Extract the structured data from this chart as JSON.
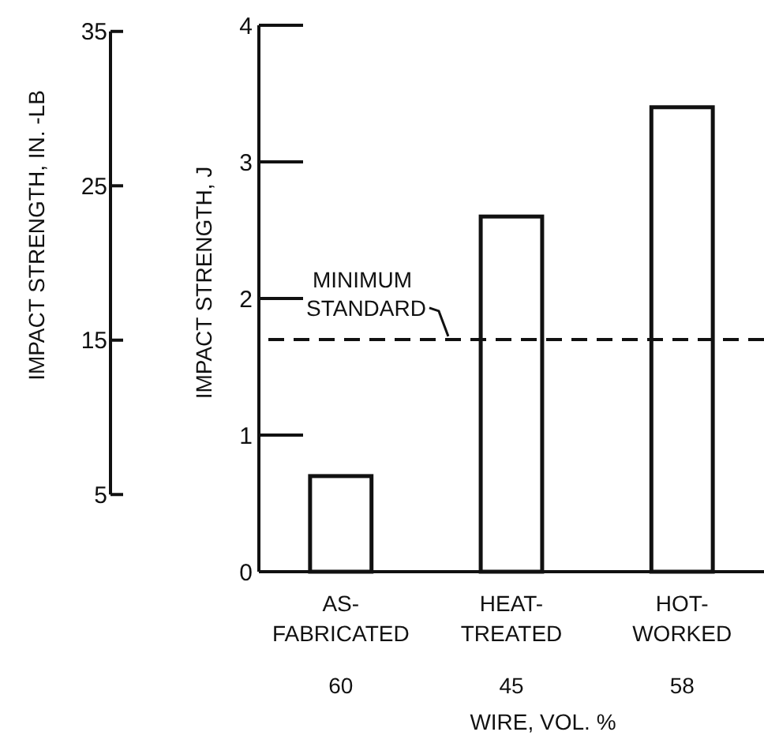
{
  "chart_data": {
    "type": "bar",
    "categories": [
      "AS-FABRICATED",
      "HEAT-TREATED",
      "HOT-WORKED"
    ],
    "values": [
      0.7,
      2.6,
      3.4
    ],
    "color": "#ffffff",
    "ylabel": "IMPACT STRENGTH, J",
    "ylim": [
      0,
      4
    ],
    "yticks": [
      0,
      1,
      2,
      3,
      4
    ],
    "y2label": "IMPACT STRENGTH, IN. -LB",
    "y2lim": [
      5,
      35
    ],
    "y2ticks": [
      5,
      15,
      25,
      35
    ],
    "xlabel": "WIRE, VOL. %",
    "annotations": [
      "60",
      "45",
      "58"
    ],
    "ref_lines": [
      {
        "axis": "y",
        "value": 1.7,
        "label": "MINIMUM STANDARD",
        "line_style": "dashed"
      }
    ]
  }
}
